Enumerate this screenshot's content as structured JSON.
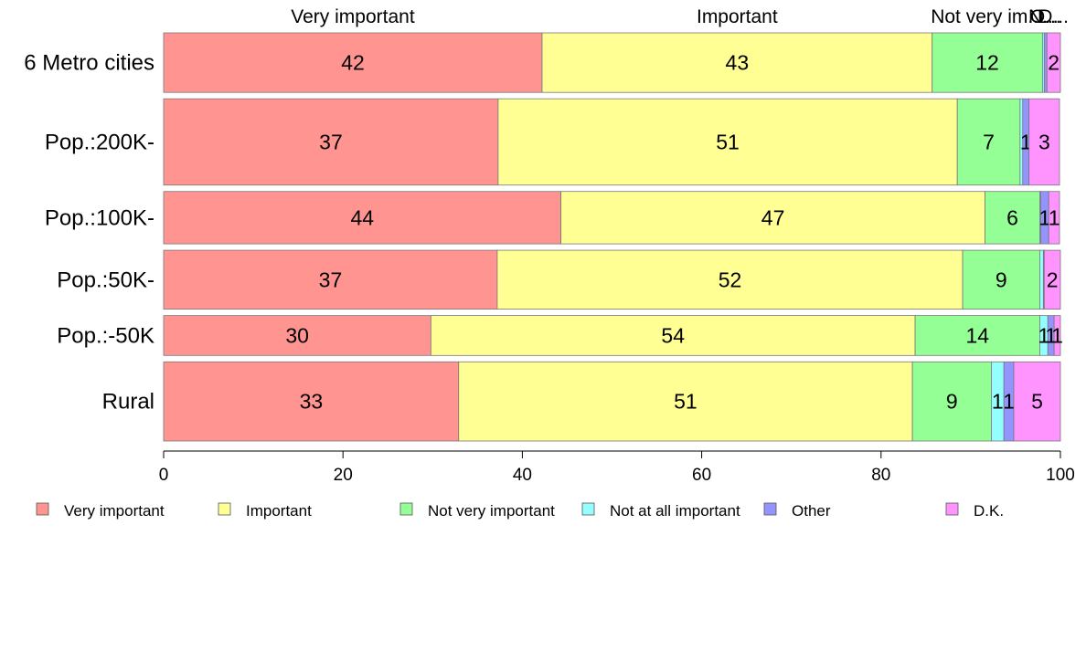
{
  "chart_data": {
    "type": "bar",
    "orientation": "horizontal",
    "stacked": true,
    "categories": [
      "6 Metro cities",
      "Pop.:200K-",
      "Pop.:100K-",
      "Pop.:50K-",
      "Pop.:-50K",
      "Rural"
    ],
    "series": [
      {
        "name": "Very important",
        "color": "#ff9491",
        "values": [
          42.2,
          37.3,
          44.3,
          37.2,
          29.8,
          32.9
        ]
      },
      {
        "name": "Important",
        "color": "#ffff94",
        "values": [
          43.5,
          51.2,
          47.3,
          51.9,
          54.0,
          50.6
        ]
      },
      {
        "name": "Not very important",
        "color": "#94ff94",
        "values": [
          12.3,
          7.0,
          6.1,
          8.6,
          13.9,
          8.8
        ]
      },
      {
        "name": "Not at all important",
        "color": "#94ffff",
        "values": [
          0.2,
          0.3,
          0.1,
          0.4,
          0.9,
          1.4
        ]
      },
      {
        "name": "Other",
        "color": "#9494ff",
        "values": [
          0.3,
          0.7,
          0.9,
          0.1,
          0.7,
          1.1
        ]
      },
      {
        "name": "D.K.",
        "color": "#ff94ff",
        "values": [
          1.5,
          3.4,
          1.2,
          1.8,
          0.7,
          5.2
        ]
      }
    ],
    "value_labels": [
      [
        "42",
        "43",
        "12",
        "",
        "",
        "2"
      ],
      [
        "37",
        "51",
        "7",
        "",
        "1",
        "3"
      ],
      [
        "44",
        "47",
        "6",
        "",
        "1",
        "1"
      ],
      [
        "37",
        "52",
        "9",
        "",
        "",
        "2"
      ],
      [
        "30",
        "54",
        "14",
        "1",
        "1",
        "1"
      ],
      [
        "33",
        "51",
        "9",
        "1",
        "1",
        "5"
      ]
    ],
    "top_labels": [
      "Very important",
      "Important",
      "Not very im...",
      "N...",
      "O...",
      "D..."
    ],
    "xlim": [
      0,
      100
    ],
    "x_ticks": [
      0,
      20,
      40,
      60,
      80,
      100
    ],
    "row_weights": [
      1.0,
      1.45,
      0.88,
      0.99,
      0.67,
      1.33
    ],
    "legend_position": "bottom",
    "grid": false
  }
}
